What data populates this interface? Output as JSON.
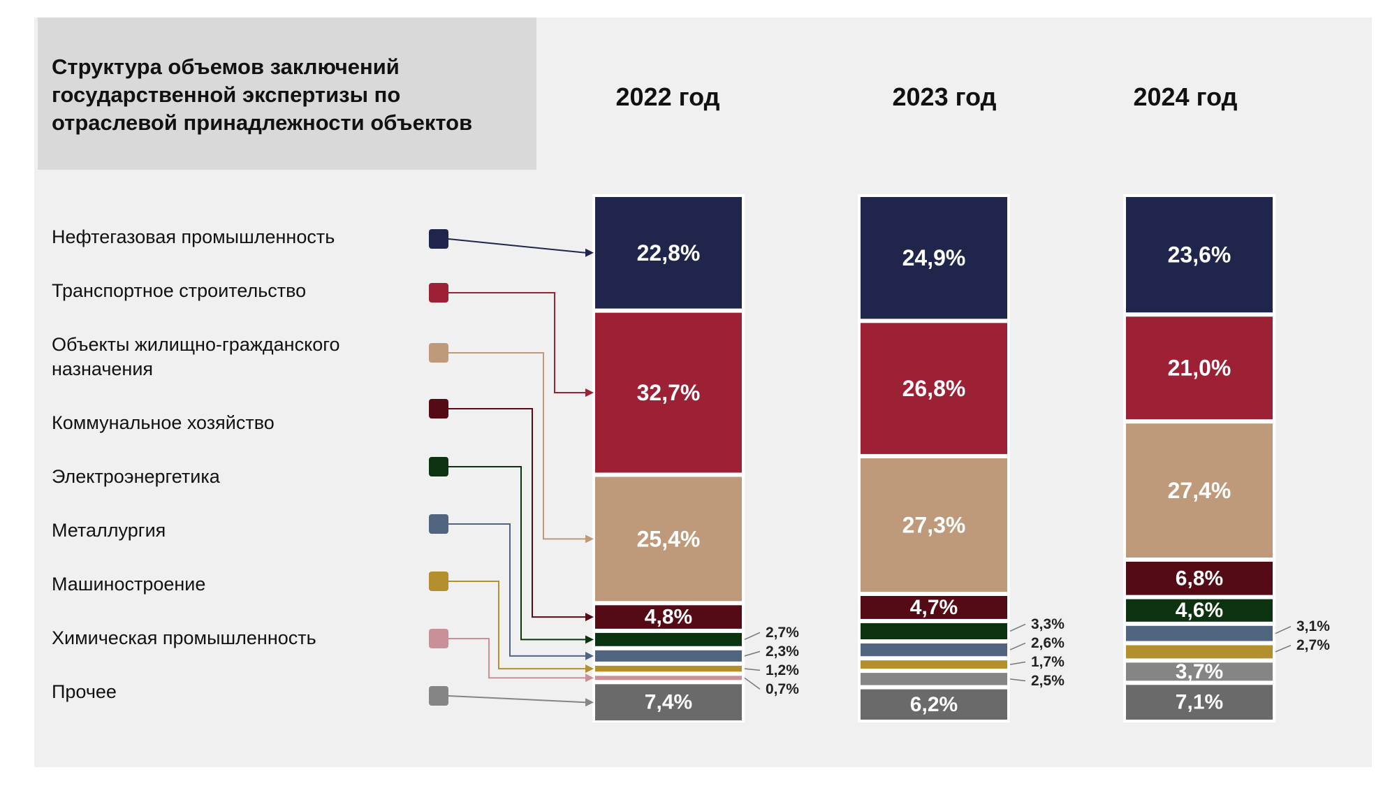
{
  "title": "Структура объемов заключений\nгосударственной экспертизы по\nотраслевой принадлежности объектов",
  "chart_data": {
    "type": "bar",
    "stacked": true,
    "normalized": true,
    "categories": [
      "2022 год",
      "2023 год",
      "2024 год"
    ],
    "series": [
      {
        "name": "Нефтегазовая промышленность",
        "color": "#20264b",
        "values": [
          22.8,
          24.9,
          23.6
        ],
        "labels": [
          "22,8%",
          "24,9%",
          "23,6%"
        ]
      },
      {
        "name": "Транспортное строительство",
        "color": "#9c2135",
        "values": [
          32.7,
          26.8,
          21.0
        ],
        "labels": [
          "32,7%",
          "26,8%",
          "21,0%"
        ]
      },
      {
        "name": "Объекты жилищно-гражданского назначения",
        "color": "#be9a7a",
        "values": [
          25.4,
          27.3,
          27.4
        ],
        "labels": [
          "25,4%",
          "27,3%",
          "27,4%"
        ]
      },
      {
        "name": "Коммунальное хозяйство",
        "color": "#550b16",
        "values": [
          4.8,
          4.7,
          6.8
        ],
        "labels": [
          "4,8%",
          "4,7%",
          "6,8%"
        ]
      },
      {
        "name": "Электроэнергетика",
        "color": "#0b3310",
        "values": [
          2.7,
          3.3,
          4.6
        ],
        "labels": [
          "2,7%",
          "3,3%",
          "4,6%"
        ]
      },
      {
        "name": "Металлургия",
        "color": "#526580",
        "values": [
          2.3,
          2.6,
          3.1
        ],
        "labels": [
          "2,3%",
          "2,6%",
          "3,1%"
        ]
      },
      {
        "name": "Машиностроение",
        "color": "#b38f2e",
        "values": [
          1.2,
          1.7,
          2.7
        ],
        "labels": [
          "1,2%",
          "1,7%",
          "2,7%"
        ]
      },
      {
        "name": "Химическая промышленность",
        "color": "#c99097",
        "values": [
          0.7,
          null,
          null
        ],
        "labels": [
          "0,7%",
          "",
          ""
        ]
      },
      {
        "name": "Прочее",
        "color": "#858585",
        "values": [
          7.4,
          8.7,
          10.8
        ],
        "labels": [
          "7,4%",
          "",
          ""
        ],
        "split": [
          [
            7.4
          ],
          [
            2.5,
            6.2
          ],
          [
            3.7,
            7.1
          ]
        ],
        "split_labels": [
          [
            "7,4%"
          ],
          [
            "2,5%",
            "6,2%"
          ],
          [
            "3,7%",
            "7,1%"
          ]
        ],
        "split_colors": [
          [
            "#6a6a6a"
          ],
          [
            "#858585",
            "#6a6a6a"
          ],
          [
            "#858585",
            "#6a6a6a"
          ]
        ]
      }
    ],
    "ylim": [
      0,
      100
    ],
    "legend": "left"
  }
}
